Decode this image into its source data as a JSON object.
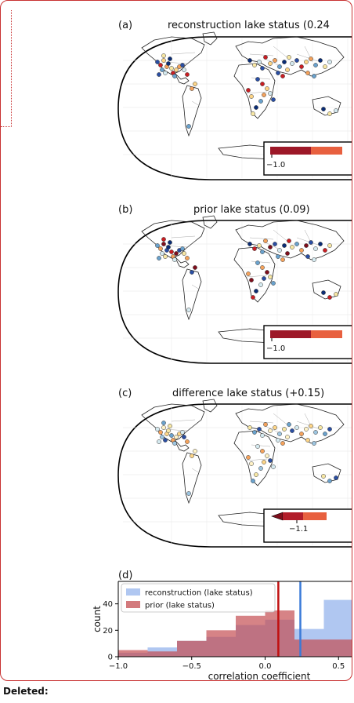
{
  "panels": [
    {
      "letter": "(a)",
      "title": "reconstruction lake status (0.24",
      "colorbar": {
        "type": "plain",
        "tick": "−1.0"
      }
    },
    {
      "letter": "(b)",
      "title": "prior lake status (0.09)",
      "colorbar": {
        "type": "plain",
        "tick": "−1.0"
      }
    },
    {
      "letter": "(c)",
      "title": "difference lake status (+0.15)",
      "colorbar": {
        "type": "arrow",
        "tick": "−1.1"
      }
    }
  ],
  "panel_d": {
    "letter": "(d)"
  },
  "chart_data": {
    "type": "bar",
    "xlabel": "correlation coefficient",
    "ylabel": "count",
    "xlim": [
      -1.0,
      0.6
    ],
    "ylim": [
      0,
      57
    ],
    "xticks": [
      "−1.0",
      "−0.5",
      "0.0",
      "0.5"
    ],
    "yticks": [
      "0",
      "20",
      "40"
    ],
    "bin_edges": [
      -1.0,
      -0.8,
      -0.6,
      -0.4,
      -0.2,
      0.0,
      0.2,
      0.4,
      0.6
    ],
    "series": [
      {
        "name": "reconstruction (lake status)",
        "color": "#7ba2e8",
        "values": [
          3,
          7,
          12,
          15,
          24,
          28,
          21,
          43
        ],
        "mean": 0.24,
        "mean_color": "#3a7ad8"
      },
      {
        "name": "prior (lake status)",
        "color": "#c44e52",
        "values": [
          5,
          4,
          12,
          20,
          31,
          35,
          13,
          13
        ],
        "mean": 0.09,
        "mean_color": "#c01010"
      }
    ]
  },
  "footer": {
    "label": "Deleted:"
  }
}
